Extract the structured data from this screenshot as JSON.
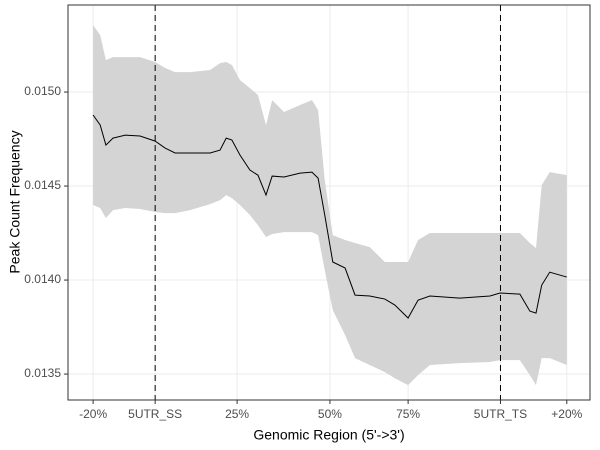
{
  "chart_data": {
    "type": "ribbon-line",
    "x_label": "Genomic Region (5'->3')",
    "y_label": "Peak Count Frequency",
    "x": [
      0.0,
      1.5,
      2.7,
      4.2,
      6.8,
      9.9,
      13.1,
      15.2,
      17.3,
      20.5,
      24.7,
      26.8,
      28.1,
      29.3,
      31.0,
      33.1,
      34.8,
      36.5,
      37.8,
      40.3,
      43.7,
      46.2,
      47.5,
      48.9,
      50.6,
      53.2,
      55.3,
      58.4,
      61.6,
      63.7,
      66.5,
      68.6,
      71.1,
      77.4,
      83.8,
      85.9,
      90.1,
      92.2,
      93.5,
      94.7,
      96.4,
      100.0
    ],
    "y": [
      0.014878,
      0.014824,
      0.014718,
      0.014755,
      0.014771,
      0.014766,
      0.014739,
      0.014702,
      0.014676,
      0.014676,
      0.014676,
      0.014691,
      0.014755,
      0.014745,
      0.014665,
      0.014585,
      0.014558,
      0.014452,
      0.014553,
      0.014548,
      0.014569,
      0.014574,
      0.014542,
      0.014346,
      0.014096,
      0.014064,
      0.01392,
      0.013915,
      0.013899,
      0.013867,
      0.013798,
      0.013893,
      0.013915,
      0.013904,
      0.013915,
      0.013931,
      0.013925,
      0.013835,
      0.013824,
      0.013973,
      0.014042,
      0.014016
    ],
    "ci_upper": [
      0.015356,
      0.015303,
      0.01517,
      0.015186,
      0.015186,
      0.015186,
      0.01516,
      0.015128,
      0.015106,
      0.015106,
      0.015117,
      0.015154,
      0.01516,
      0.015144,
      0.015064,
      0.015021,
      0.014984,
      0.014824,
      0.014957,
      0.014894,
      0.014931,
      0.014957,
      0.014904,
      0.014532,
      0.014239,
      0.014213,
      0.014197,
      0.014175,
      0.014096,
      0.014096,
      0.014096,
      0.014213,
      0.01425,
      0.01425,
      0.01425,
      0.01425,
      0.01425,
      0.014197,
      0.01417,
      0.014505,
      0.014574,
      0.014558
    ],
    "ci_lower": [
      0.014399,
      0.014383,
      0.01433,
      0.014372,
      0.014383,
      0.014378,
      0.014362,
      0.014356,
      0.014356,
      0.014372,
      0.014404,
      0.014425,
      0.014452,
      0.014436,
      0.014399,
      0.014346,
      0.014292,
      0.014229,
      0.014245,
      0.014255,
      0.014255,
      0.014255,
      0.014239,
      0.014053,
      0.01384,
      0.013707,
      0.013585,
      0.013548,
      0.01351,
      0.013478,
      0.013441,
      0.013494,
      0.013548,
      0.013558,
      0.013564,
      0.013574,
      0.013574,
      0.013494,
      0.013441,
      0.013585,
      0.013585,
      0.013548
    ],
    "line_color": "#000000",
    "band_color": "#d4d4d4",
    "vlines": [
      13.1,
      86.0
    ],
    "xlim": [
      -5.3,
      104.9
    ],
    "xticks": [
      {
        "value": 0,
        "label": "-20%"
      },
      {
        "value": 13.1,
        "label": "5UTR_SS"
      },
      {
        "value": 30.4,
        "label": "25%"
      },
      {
        "value": 50,
        "label": "50%"
      },
      {
        "value": 66.5,
        "label": "75%"
      },
      {
        "value": 86.0,
        "label": "5UTR_TS"
      },
      {
        "value": 100,
        "label": "+20%"
      }
    ],
    "ylim": [
      0.013362,
      0.015463
    ],
    "yticks": [
      0.0135,
      {
        "value": 0.014,
        "label": "0.0140"
      },
      0.0145,
      {
        "value": 0.015,
        "label": "0.0150"
      }
    ],
    "grid": true
  }
}
